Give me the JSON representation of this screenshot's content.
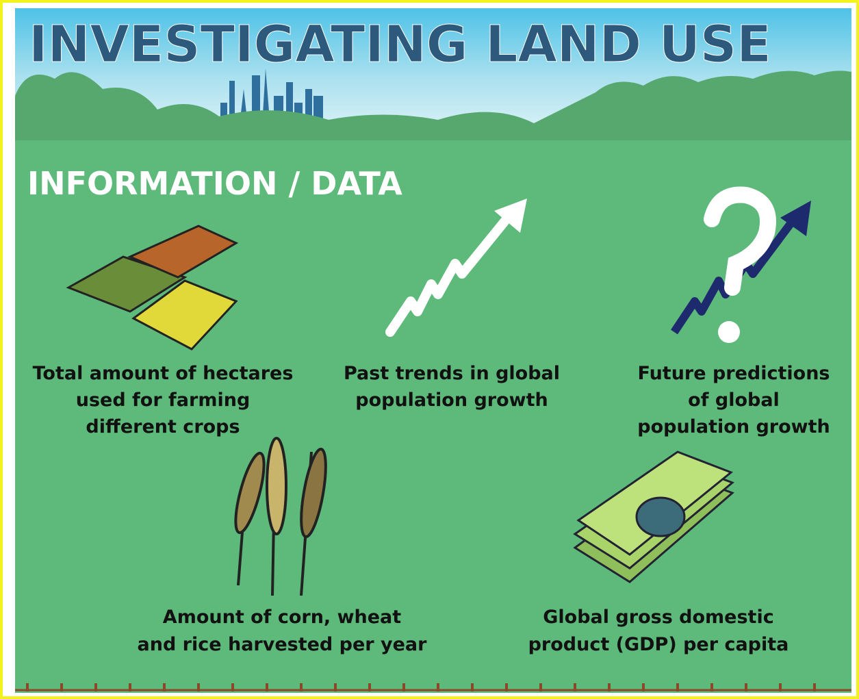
{
  "header": {
    "title": "INVESTIGATING LAND USE"
  },
  "section": {
    "title": "INFORMATION / DATA"
  },
  "items": [
    {
      "lines": [
        "Total amount of hectares",
        "used for farming",
        "different crops"
      ]
    },
    {
      "lines": [
        "Past trends in global",
        "population growth"
      ]
    },
    {
      "lines": [
        "Future predictions",
        "of global",
        "population growth"
      ]
    },
    {
      "lines": [
        "Amount of corn, wheat",
        "and rice harvested per year"
      ]
    },
    {
      "lines": [
        "Global gross domestic",
        "product (GDP) per capita"
      ]
    }
  ]
}
